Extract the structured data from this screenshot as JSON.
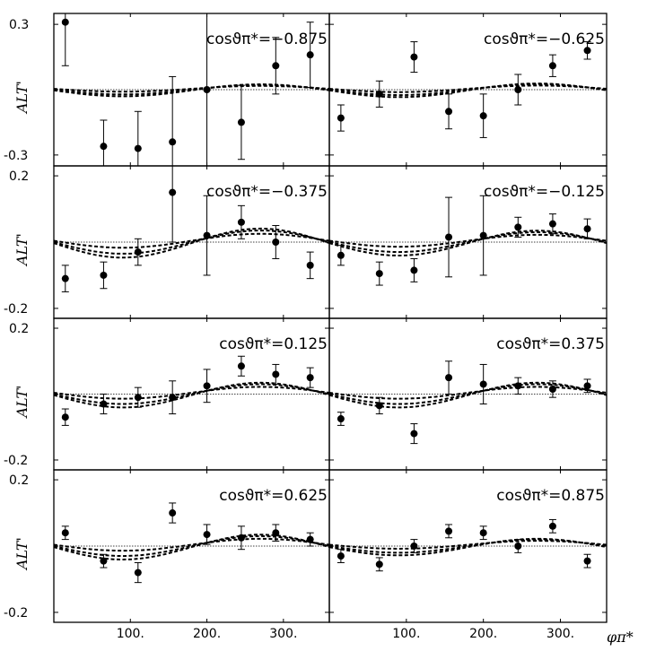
{
  "chart_data": {
    "type": "scatter",
    "title": "",
    "xlabel": "φπ*",
    "ylabel": "ALT'",
    "xlim": [
      0,
      360
    ],
    "x_tick_labels": [
      "100.",
      "200.",
      "300."
    ],
    "x": [
      15,
      65,
      110,
      155,
      200,
      245,
      290,
      335
    ],
    "panels": [
      {
        "label": "cosϑπ*=−0.875",
        "ylim": [
          -0.35,
          0.35
        ],
        "ytick_labels": [
          "0.3",
          "-0.3"
        ],
        "values": [
          0.31,
          -0.26,
          -0.27,
          -0.24,
          0.0,
          -0.15,
          0.11,
          0.16
        ],
        "errors": [
          0.2,
          0.12,
          0.17,
          0.3,
          0.37,
          0.17,
          0.13,
          0.15
        ],
        "model_amplitude": 0.022
      },
      {
        "label": "cosϑπ*=−0.625",
        "ylim": [
          -0.35,
          0.35
        ],
        "ytick_labels": [],
        "values": [
          -0.13,
          -0.02,
          0.15,
          -0.1,
          -0.12,
          0.0,
          0.11,
          0.18
        ],
        "errors": [
          0.06,
          0.06,
          0.07,
          0.08,
          0.1,
          0.07,
          0.05,
          0.04
        ],
        "model_amplitude": 0.025
      },
      {
        "label": "cosϑπ*=−0.375",
        "ylim": [
          -0.23,
          0.23
        ],
        "ytick_labels": [
          "0.2",
          "-0.2"
        ],
        "values": [
          -0.11,
          -0.1,
          -0.03,
          0.15,
          0.02,
          0.06,
          0.0,
          -0.07
        ],
        "errors": [
          0.04,
          0.04,
          0.04,
          0.15,
          0.12,
          0.05,
          0.05,
          0.04
        ],
        "model_amplitude": 0.035
      },
      {
        "label": "cosϑπ*=−0.125",
        "ylim": [
          -0.23,
          0.23
        ],
        "ytick_labels": [],
        "values": [
          -0.04,
          -0.095,
          -0.085,
          0.015,
          0.02,
          0.045,
          0.055,
          0.04
        ],
        "errors": [
          0.03,
          0.035,
          0.035,
          0.12,
          0.12,
          0.03,
          0.03,
          0.03
        ],
        "model_amplitude": 0.03
      },
      {
        "label": "cosϑπ*=0.125",
        "ylim": [
          -0.23,
          0.23
        ],
        "ytick_labels": [
          "0.2",
          "-0.2"
        ],
        "values": [
          -0.07,
          -0.03,
          -0.01,
          -0.01,
          0.025,
          0.085,
          0.06,
          0.05
        ],
        "errors": [
          0.025,
          0.03,
          0.03,
          0.05,
          0.05,
          0.03,
          0.03,
          0.03
        ],
        "model_amplitude": 0.03
      },
      {
        "label": "cosϑπ*=0.375",
        "ylim": [
          -0.23,
          0.23
        ],
        "ytick_labels": [],
        "values": [
          -0.075,
          -0.035,
          -0.12,
          0.05,
          0.03,
          0.025,
          0.015,
          0.025
        ],
        "errors": [
          0.02,
          0.025,
          0.03,
          0.05,
          0.06,
          0.025,
          0.025,
          0.02
        ],
        "model_amplitude": 0.03
      },
      {
        "label": "cosϑπ*=0.625",
        "ylim": [
          -0.23,
          0.23
        ],
        "ytick_labels": [
          "0.2",
          "-0.2"
        ],
        "values": [
          0.04,
          -0.045,
          -0.08,
          0.1,
          0.035,
          0.025,
          0.04,
          0.02
        ],
        "errors": [
          0.02,
          0.02,
          0.03,
          0.03,
          0.03,
          0.035,
          0.025,
          0.02
        ],
        "model_amplitude": 0.03
      },
      {
        "label": "cosϑπ*=0.875",
        "ylim": [
          -0.23,
          0.23
        ],
        "ytick_labels": [],
        "values": [
          -0.03,
          -0.055,
          0.0,
          0.045,
          0.04,
          0.0,
          0.06,
          -0.045
        ],
        "errors": [
          0.02,
          0.02,
          0.02,
          0.02,
          0.02,
          0.02,
          0.02,
          0.02
        ],
        "model_amplitude": 0.02
      }
    ]
  }
}
